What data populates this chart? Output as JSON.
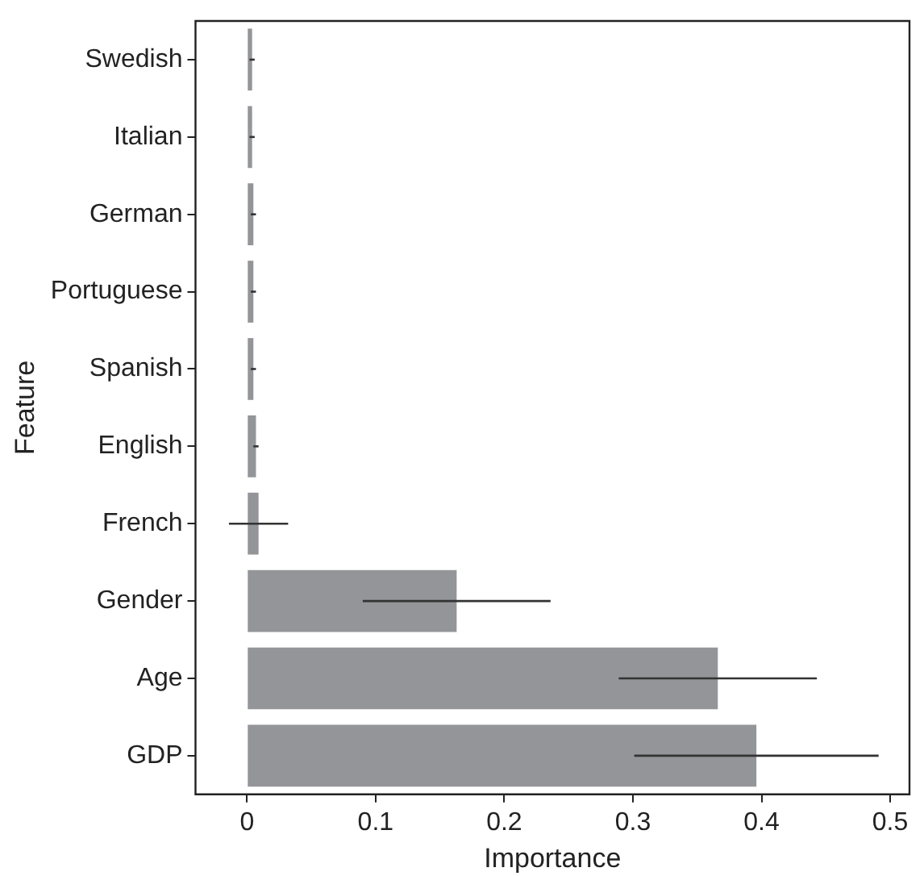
{
  "chart_data": {
    "type": "bar",
    "orientation": "horizontal",
    "xlabel": "Importance",
    "ylabel": "Feature",
    "categories": [
      "Swedish",
      "Italian",
      "German",
      "Portuguese",
      "Spanish",
      "English",
      "French",
      "Gender",
      "Age",
      "GDP"
    ],
    "values": [
      0.004,
      0.004,
      0.005,
      0.005,
      0.005,
      0.007,
      0.009,
      0.163,
      0.366,
      0.396
    ],
    "errors": [
      0.002,
      0.002,
      0.002,
      0.002,
      0.002,
      0.002,
      0.023,
      0.073,
      0.077,
      0.095
    ],
    "color": "#939598",
    "xlim": [
      -0.04,
      0.515
    ],
    "xticks": [
      0,
      0.1,
      0.2,
      0.3,
      0.4,
      0.5
    ],
    "grid": false
  }
}
